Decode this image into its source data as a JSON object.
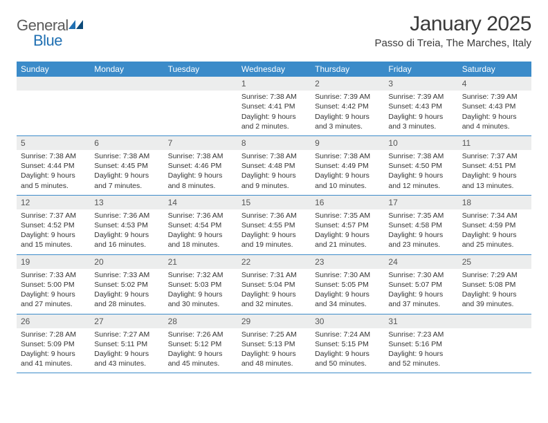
{
  "brand": {
    "part1": "General",
    "part2": "Blue"
  },
  "title": "January 2025",
  "location": "Passo di Treia, The Marches, Italy",
  "colors": {
    "header_bg": "#3b8bc9",
    "header_text": "#ffffff",
    "daynum_bg": "#eceded",
    "border": "#3b8bc9",
    "text": "#333333",
    "title": "#3a3a3a",
    "logo_grey": "#5a5a5a",
    "logo_blue": "#1f6fb2"
  },
  "typography": {
    "title_fontsize": 30,
    "location_fontsize": 15,
    "dayheader_fontsize": 12,
    "cell_fontsize": 10.5,
    "daynum_fontsize": 12
  },
  "day_headers": [
    "Sunday",
    "Monday",
    "Tuesday",
    "Wednesday",
    "Thursday",
    "Friday",
    "Saturday"
  ],
  "weeks": [
    [
      {
        "n": "",
        "sr": "",
        "ss": "",
        "dl": ""
      },
      {
        "n": "",
        "sr": "",
        "ss": "",
        "dl": ""
      },
      {
        "n": "",
        "sr": "",
        "ss": "",
        "dl": ""
      },
      {
        "n": "1",
        "sr": "7:38 AM",
        "ss": "4:41 PM",
        "dl": "9 hours and 2 minutes."
      },
      {
        "n": "2",
        "sr": "7:39 AM",
        "ss": "4:42 PM",
        "dl": "9 hours and 3 minutes."
      },
      {
        "n": "3",
        "sr": "7:39 AM",
        "ss": "4:43 PM",
        "dl": "9 hours and 3 minutes."
      },
      {
        "n": "4",
        "sr": "7:39 AM",
        "ss": "4:43 PM",
        "dl": "9 hours and 4 minutes."
      }
    ],
    [
      {
        "n": "5",
        "sr": "7:38 AM",
        "ss": "4:44 PM",
        "dl": "9 hours and 5 minutes."
      },
      {
        "n": "6",
        "sr": "7:38 AM",
        "ss": "4:45 PM",
        "dl": "9 hours and 7 minutes."
      },
      {
        "n": "7",
        "sr": "7:38 AM",
        "ss": "4:46 PM",
        "dl": "9 hours and 8 minutes."
      },
      {
        "n": "8",
        "sr": "7:38 AM",
        "ss": "4:48 PM",
        "dl": "9 hours and 9 minutes."
      },
      {
        "n": "9",
        "sr": "7:38 AM",
        "ss": "4:49 PM",
        "dl": "9 hours and 10 minutes."
      },
      {
        "n": "10",
        "sr": "7:38 AM",
        "ss": "4:50 PM",
        "dl": "9 hours and 12 minutes."
      },
      {
        "n": "11",
        "sr": "7:37 AM",
        "ss": "4:51 PM",
        "dl": "9 hours and 13 minutes."
      }
    ],
    [
      {
        "n": "12",
        "sr": "7:37 AM",
        "ss": "4:52 PM",
        "dl": "9 hours and 15 minutes."
      },
      {
        "n": "13",
        "sr": "7:36 AM",
        "ss": "4:53 PM",
        "dl": "9 hours and 16 minutes."
      },
      {
        "n": "14",
        "sr": "7:36 AM",
        "ss": "4:54 PM",
        "dl": "9 hours and 18 minutes."
      },
      {
        "n": "15",
        "sr": "7:36 AM",
        "ss": "4:55 PM",
        "dl": "9 hours and 19 minutes."
      },
      {
        "n": "16",
        "sr": "7:35 AM",
        "ss": "4:57 PM",
        "dl": "9 hours and 21 minutes."
      },
      {
        "n": "17",
        "sr": "7:35 AM",
        "ss": "4:58 PM",
        "dl": "9 hours and 23 minutes."
      },
      {
        "n": "18",
        "sr": "7:34 AM",
        "ss": "4:59 PM",
        "dl": "9 hours and 25 minutes."
      }
    ],
    [
      {
        "n": "19",
        "sr": "7:33 AM",
        "ss": "5:00 PM",
        "dl": "9 hours and 27 minutes."
      },
      {
        "n": "20",
        "sr": "7:33 AM",
        "ss": "5:02 PM",
        "dl": "9 hours and 28 minutes."
      },
      {
        "n": "21",
        "sr": "7:32 AM",
        "ss": "5:03 PM",
        "dl": "9 hours and 30 minutes."
      },
      {
        "n": "22",
        "sr": "7:31 AM",
        "ss": "5:04 PM",
        "dl": "9 hours and 32 minutes."
      },
      {
        "n": "23",
        "sr": "7:30 AM",
        "ss": "5:05 PM",
        "dl": "9 hours and 34 minutes."
      },
      {
        "n": "24",
        "sr": "7:30 AM",
        "ss": "5:07 PM",
        "dl": "9 hours and 37 minutes."
      },
      {
        "n": "25",
        "sr": "7:29 AM",
        "ss": "5:08 PM",
        "dl": "9 hours and 39 minutes."
      }
    ],
    [
      {
        "n": "26",
        "sr": "7:28 AM",
        "ss": "5:09 PM",
        "dl": "9 hours and 41 minutes."
      },
      {
        "n": "27",
        "sr": "7:27 AM",
        "ss": "5:11 PM",
        "dl": "9 hours and 43 minutes."
      },
      {
        "n": "28",
        "sr": "7:26 AM",
        "ss": "5:12 PM",
        "dl": "9 hours and 45 minutes."
      },
      {
        "n": "29",
        "sr": "7:25 AM",
        "ss": "5:13 PM",
        "dl": "9 hours and 48 minutes."
      },
      {
        "n": "30",
        "sr": "7:24 AM",
        "ss": "5:15 PM",
        "dl": "9 hours and 50 minutes."
      },
      {
        "n": "31",
        "sr": "7:23 AM",
        "ss": "5:16 PM",
        "dl": "9 hours and 52 minutes."
      },
      {
        "n": "",
        "sr": "",
        "ss": "",
        "dl": ""
      }
    ]
  ],
  "labels": {
    "sunrise": "Sunrise: ",
    "sunset": "Sunset: ",
    "daylight": "Daylight: "
  }
}
